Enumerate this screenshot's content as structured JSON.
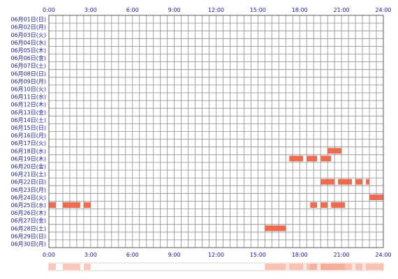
{
  "chart_data": {
    "type": "heatmap",
    "title": "",
    "xlabel": "",
    "ylabel": "",
    "x_ticks": [
      "0:00",
      "3:00",
      "6:00",
      "9:00",
      "12:00",
      "15:00",
      "18:00",
      "21:00",
      "24:00"
    ],
    "xlim_hours": [
      0,
      24
    ],
    "days": [
      "06月01日(日)",
      "06月02日(月)",
      "06月03日(火)",
      "06月04日(水)",
      "06月05日(木)",
      "06月06日(金)",
      "06月07日(土)",
      "06月08日(日)",
      "06月09日(月)",
      "06月10日(火)",
      "06月11日(水)",
      "06月12日(木)",
      "06月13日(金)",
      "06月14日(土)",
      "06月15日(日)",
      "06月16日(月)",
      "06月17日(火)",
      "06月18日(水)",
      "06月19日(木)",
      "06月20日(金)",
      "06月21日(土)",
      "06月22日(日)",
      "06月23日(月)",
      "06月24日(火)",
      "06月25日(水)",
      "06月26日(木)",
      "06月27日(金)",
      "06月28日(土)",
      "06月29日(日)",
      "06月30日(月)"
    ],
    "grid_minutes": 30,
    "activity": [
      {
        "day": "06月18日(水)",
        "start": "20:00",
        "end": "21:00"
      },
      {
        "day": "06月19日(木)",
        "start": "17:15",
        "end": "18:15"
      },
      {
        "day": "06月19日(木)",
        "start": "18:30",
        "end": "19:15"
      },
      {
        "day": "06月19日(木)",
        "start": "19:30",
        "end": "20:15"
      },
      {
        "day": "06月22日(日)",
        "start": "19:30",
        "end": "20:30"
      },
      {
        "day": "06月22日(日)",
        "start": "20:45",
        "end": "21:45"
      },
      {
        "day": "06月22日(日)",
        "start": "22:00",
        "end": "22:30"
      },
      {
        "day": "06月22日(日)",
        "start": "22:45",
        "end": "23:00"
      },
      {
        "day": "06月24日(火)",
        "start": "23:00",
        "end": "24:00"
      },
      {
        "day": "06月25日(水)",
        "start": "0:00",
        "end": "0:30"
      },
      {
        "day": "06月25日(水)",
        "start": "1:00",
        "end": "2:15"
      },
      {
        "day": "06月25日(水)",
        "start": "2:30",
        "end": "3:00"
      },
      {
        "day": "06月25日(水)",
        "start": "18:45",
        "end": "19:15"
      },
      {
        "day": "06月25日(水)",
        "start": "19:30",
        "end": "20:00"
      },
      {
        "day": "06月25日(水)",
        "start": "20:15",
        "end": "21:15"
      },
      {
        "day": "06月28日(土)",
        "start": "15:30",
        "end": "17:00"
      }
    ],
    "colors": {
      "grid": "#8c8c8c",
      "border": "#555555",
      "bar": "#f26b4e",
      "bar_light": "#f6a58f",
      "summary_bg": "#ffffff",
      "summary_tint": "#fde0d3",
      "label": "#1a1a8c"
    }
  }
}
